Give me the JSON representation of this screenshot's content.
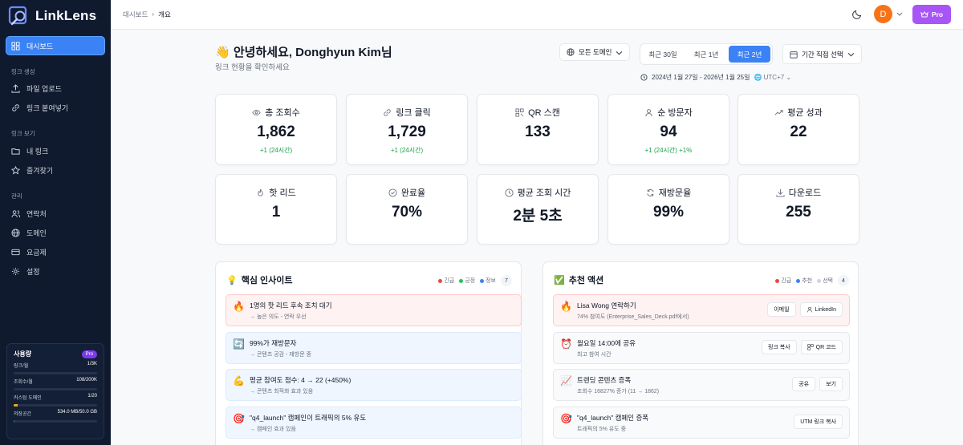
{
  "brand": {
    "name": "LinkLens"
  },
  "breadcrumb": {
    "root": "대시보드",
    "sep": "›",
    "current": "개요"
  },
  "topbar": {
    "avatar_letter": "D",
    "pro_label": "Pro"
  },
  "sidebar": {
    "dashboard": "대시보드",
    "sections": {
      "create": "링크 생성",
      "view": "링크 보기",
      "manage": "관리"
    },
    "items": {
      "upload": "파일 업로드",
      "paste": "링크 붙여넣기",
      "my_links": "내 링크",
      "favorites": "즐겨찾기",
      "contacts": "연락처",
      "domains": "도메인",
      "billing": "요금제",
      "settings": "설정"
    },
    "usage": {
      "title": "사용량",
      "badge": "Pro",
      "rows": [
        {
          "label": "링크/월",
          "value": "1/3K",
          "fill": 0.0003,
          "warn": false
        },
        {
          "label": "조회수/월",
          "value": "108/200K",
          "fill": 0.0005,
          "warn": false
        },
        {
          "label": "커스텀 도메인",
          "value": "1/20",
          "fill": 0.05,
          "warn": true
        },
        {
          "label": "저장공간",
          "value": "534.0 MB/50.0 GB",
          "fill": 0.0107,
          "warn": false
        }
      ]
    }
  },
  "header": {
    "greeting": "👋 안녕하세요, Donghyun Kim님",
    "subtitle": "링크 현황을 확인하세요",
    "domain_filter": "모든 도메인",
    "periods": [
      "최근 30일",
      "최근 1년",
      "최근 2년"
    ],
    "active_period": 2,
    "custom_range": "기간 직접 선택",
    "date_range": "2024년 1월 27일 - 2026년 1월 25일",
    "timezone": "UTC+7"
  },
  "stats": [
    {
      "label": "총 조회수",
      "value": "1,862",
      "delta": "+1 (24시간)",
      "icon": "eye-icon"
    },
    {
      "label": "링크 클릭",
      "value": "1,729",
      "delta": "+1 (24시간)",
      "icon": "link-icon"
    },
    {
      "label": "QR 스캔",
      "value": "133",
      "delta": "",
      "icon": "qr-icon"
    },
    {
      "label": "순 방문자",
      "value": "94",
      "delta": "+1 (24시간) +1%",
      "icon": "user-icon"
    },
    {
      "label": "평균 성과",
      "value": "22",
      "delta": "",
      "icon": "trend-icon"
    },
    {
      "label": "핫 리드",
      "value": "1",
      "delta": "",
      "icon": "flame-icon"
    },
    {
      "label": "완료율",
      "value": "70%",
      "delta": "",
      "icon": "check-circle-icon"
    },
    {
      "label": "평균 조회 시간",
      "value": "2분 5초",
      "delta": "",
      "icon": "clock-icon"
    },
    {
      "label": "재방문율",
      "value": "99%",
      "delta": "",
      "icon": "refresh-icon"
    },
    {
      "label": "다운로드",
      "value": "255",
      "delta": "",
      "icon": "download-icon"
    }
  ],
  "insights": {
    "emoji": "💡",
    "title": "핵심 인사이트",
    "legend": [
      "긴급",
      "긍정",
      "정보"
    ],
    "count": "7",
    "items": [
      {
        "emoji": "🔥",
        "title": "1명의 핫 리드 후속 조치 대기",
        "sub": "→ 높은 의도 - 연락 우선",
        "tone": "red"
      },
      {
        "emoji": "🔄",
        "title": "99%가 재방문자",
        "sub": "→ 콘텐츠 공감 - 재방문 중",
        "tone": "blue"
      },
      {
        "emoji": "💪",
        "title": "평균 참여도 점수: 4 → 22 (+450%)",
        "sub": "→ 콘텐츠 최적화 효과 있음",
        "tone": "blue"
      },
      {
        "emoji": "🎯",
        "title": "\"q4_launch\" 캠페인이 트래픽의 5% 유도",
        "sub": "→ 캠페인 효과 있음",
        "tone": "blue"
      }
    ]
  },
  "actions": {
    "emoji": "✅",
    "title": "추천 액션",
    "legend": [
      "긴급",
      "추천",
      "선택"
    ],
    "count": "4",
    "items": [
      {
        "emoji": "🔥",
        "title": "Lisa Wong 연락하기",
        "sub": "74% 참여도 (Enterprise_Sales_Deck.pdf에서)",
        "tone": "red",
        "buttons": [
          "이메일",
          "LinkedIn"
        ]
      },
      {
        "emoji": "⏰",
        "title": "월요일 14:00에 공유",
        "sub": "최고 참여 시간",
        "tone": "gray",
        "buttons": [
          "링크 복사",
          "QR 코드"
        ]
      },
      {
        "emoji": "📈",
        "title": "트렌딩 콘텐츠 증폭",
        "sub": "조회수 16827% 증가 (11 → 1862)",
        "tone": "gray",
        "buttons": [
          "공유",
          "보기"
        ]
      },
      {
        "emoji": "🎯",
        "title": "\"q4_launch\" 캠페인 증폭",
        "sub": "트래픽의 5% 유도 중",
        "tone": "gray",
        "buttons": [
          "UTM 링크 복사"
        ]
      }
    ]
  },
  "colors": {
    "accent": "#3b82f6",
    "sidebar": "#0f1a2e",
    "pro": "#a855f7",
    "positive": "#16a34a",
    "urgent": "#ef4444",
    "info": "#3b82f6"
  }
}
